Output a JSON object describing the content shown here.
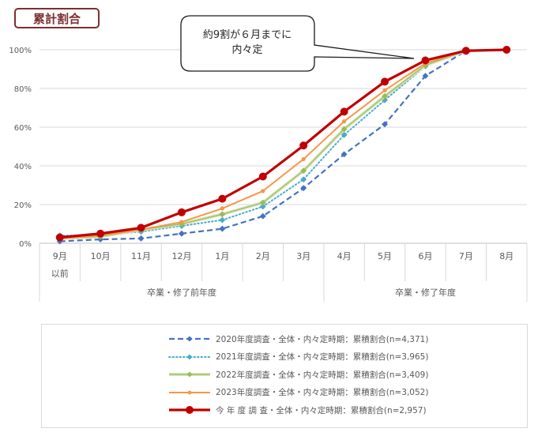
{
  "title": "累計割合",
  "callout": {
    "line1": "約9割が６月までに",
    "line2": "内々定"
  },
  "chart_data": {
    "type": "line",
    "title": "累計割合",
    "xlabel": "",
    "ylabel": "",
    "ylim": [
      0,
      100
    ],
    "yticks": [
      "0%",
      "20%",
      "40%",
      "60%",
      "80%",
      "100%"
    ],
    "categories": [
      "9月以前",
      "10月",
      "11月",
      "12月",
      "1月",
      "2月",
      "3月",
      "4月",
      "5月",
      "6月",
      "7月",
      "8月"
    ],
    "category_labels": [
      [
        "9月",
        "以前"
      ],
      [
        "10月"
      ],
      [
        "11月"
      ],
      [
        "12月"
      ],
      [
        "1月"
      ],
      [
        "2月"
      ],
      [
        "3月"
      ],
      [
        "4月"
      ],
      [
        "5月"
      ],
      [
        "6月"
      ],
      [
        "7月"
      ],
      [
        "8月"
      ]
    ],
    "groups": [
      {
        "label": "卒業・修了前年度",
        "from": 0,
        "to": 6
      },
      {
        "label": "卒業・修了年度",
        "from": 7,
        "to": 11
      }
    ],
    "grid": true,
    "legend_position": "bottom",
    "annotation": "約9割が６月までに内々定",
    "series": [
      {
        "name": "2020年度調査・全体・内々定時期：累積割合(n=4,371)",
        "color": "#4472c4",
        "style": "dashed",
        "marker": "diamond",
        "values": [
          1,
          2,
          2.5,
          5,
          7.5,
          14,
          28.5,
          46,
          61.5,
          86.5,
          99.5,
          null
        ]
      },
      {
        "name": "2021年度調査・全体・内々定時期：累積割合(n=3,965)",
        "color": "#4bacc6",
        "style": "dotted",
        "marker": "diamond",
        "values": [
          4,
          4,
          6,
          9,
          12,
          19,
          33,
          56,
          74,
          91.5,
          99.5,
          null
        ]
      },
      {
        "name": "2022年度調査・全体・内々定時期：累積割合(n=3,409)",
        "color": "#9bbb59",
        "style": "solid-light",
        "marker": "diamond",
        "values": [
          2.5,
          3.5,
          7,
          10,
          15,
          21,
          37.5,
          59,
          76,
          92,
          99.5,
          null
        ]
      },
      {
        "name": "2023年度調査・全体・内々定時期：累積割合(n=3,052)",
        "color": "#f79646",
        "style": "solid",
        "marker": "small",
        "values": [
          2.5,
          4,
          7,
          11,
          18,
          27,
          43.5,
          63,
          79,
          93,
          99.5,
          null
        ]
      },
      {
        "name": "今 年 度 調 査・全体・内々定時期：累積割合(n=2,957)",
        "color": "#c00000",
        "style": "solid-thick",
        "marker": "circle",
        "values": [
          3,
          5,
          8,
          16,
          23,
          34.5,
          50.5,
          68,
          83.5,
          94.5,
          99.5,
          100
        ]
      }
    ]
  }
}
